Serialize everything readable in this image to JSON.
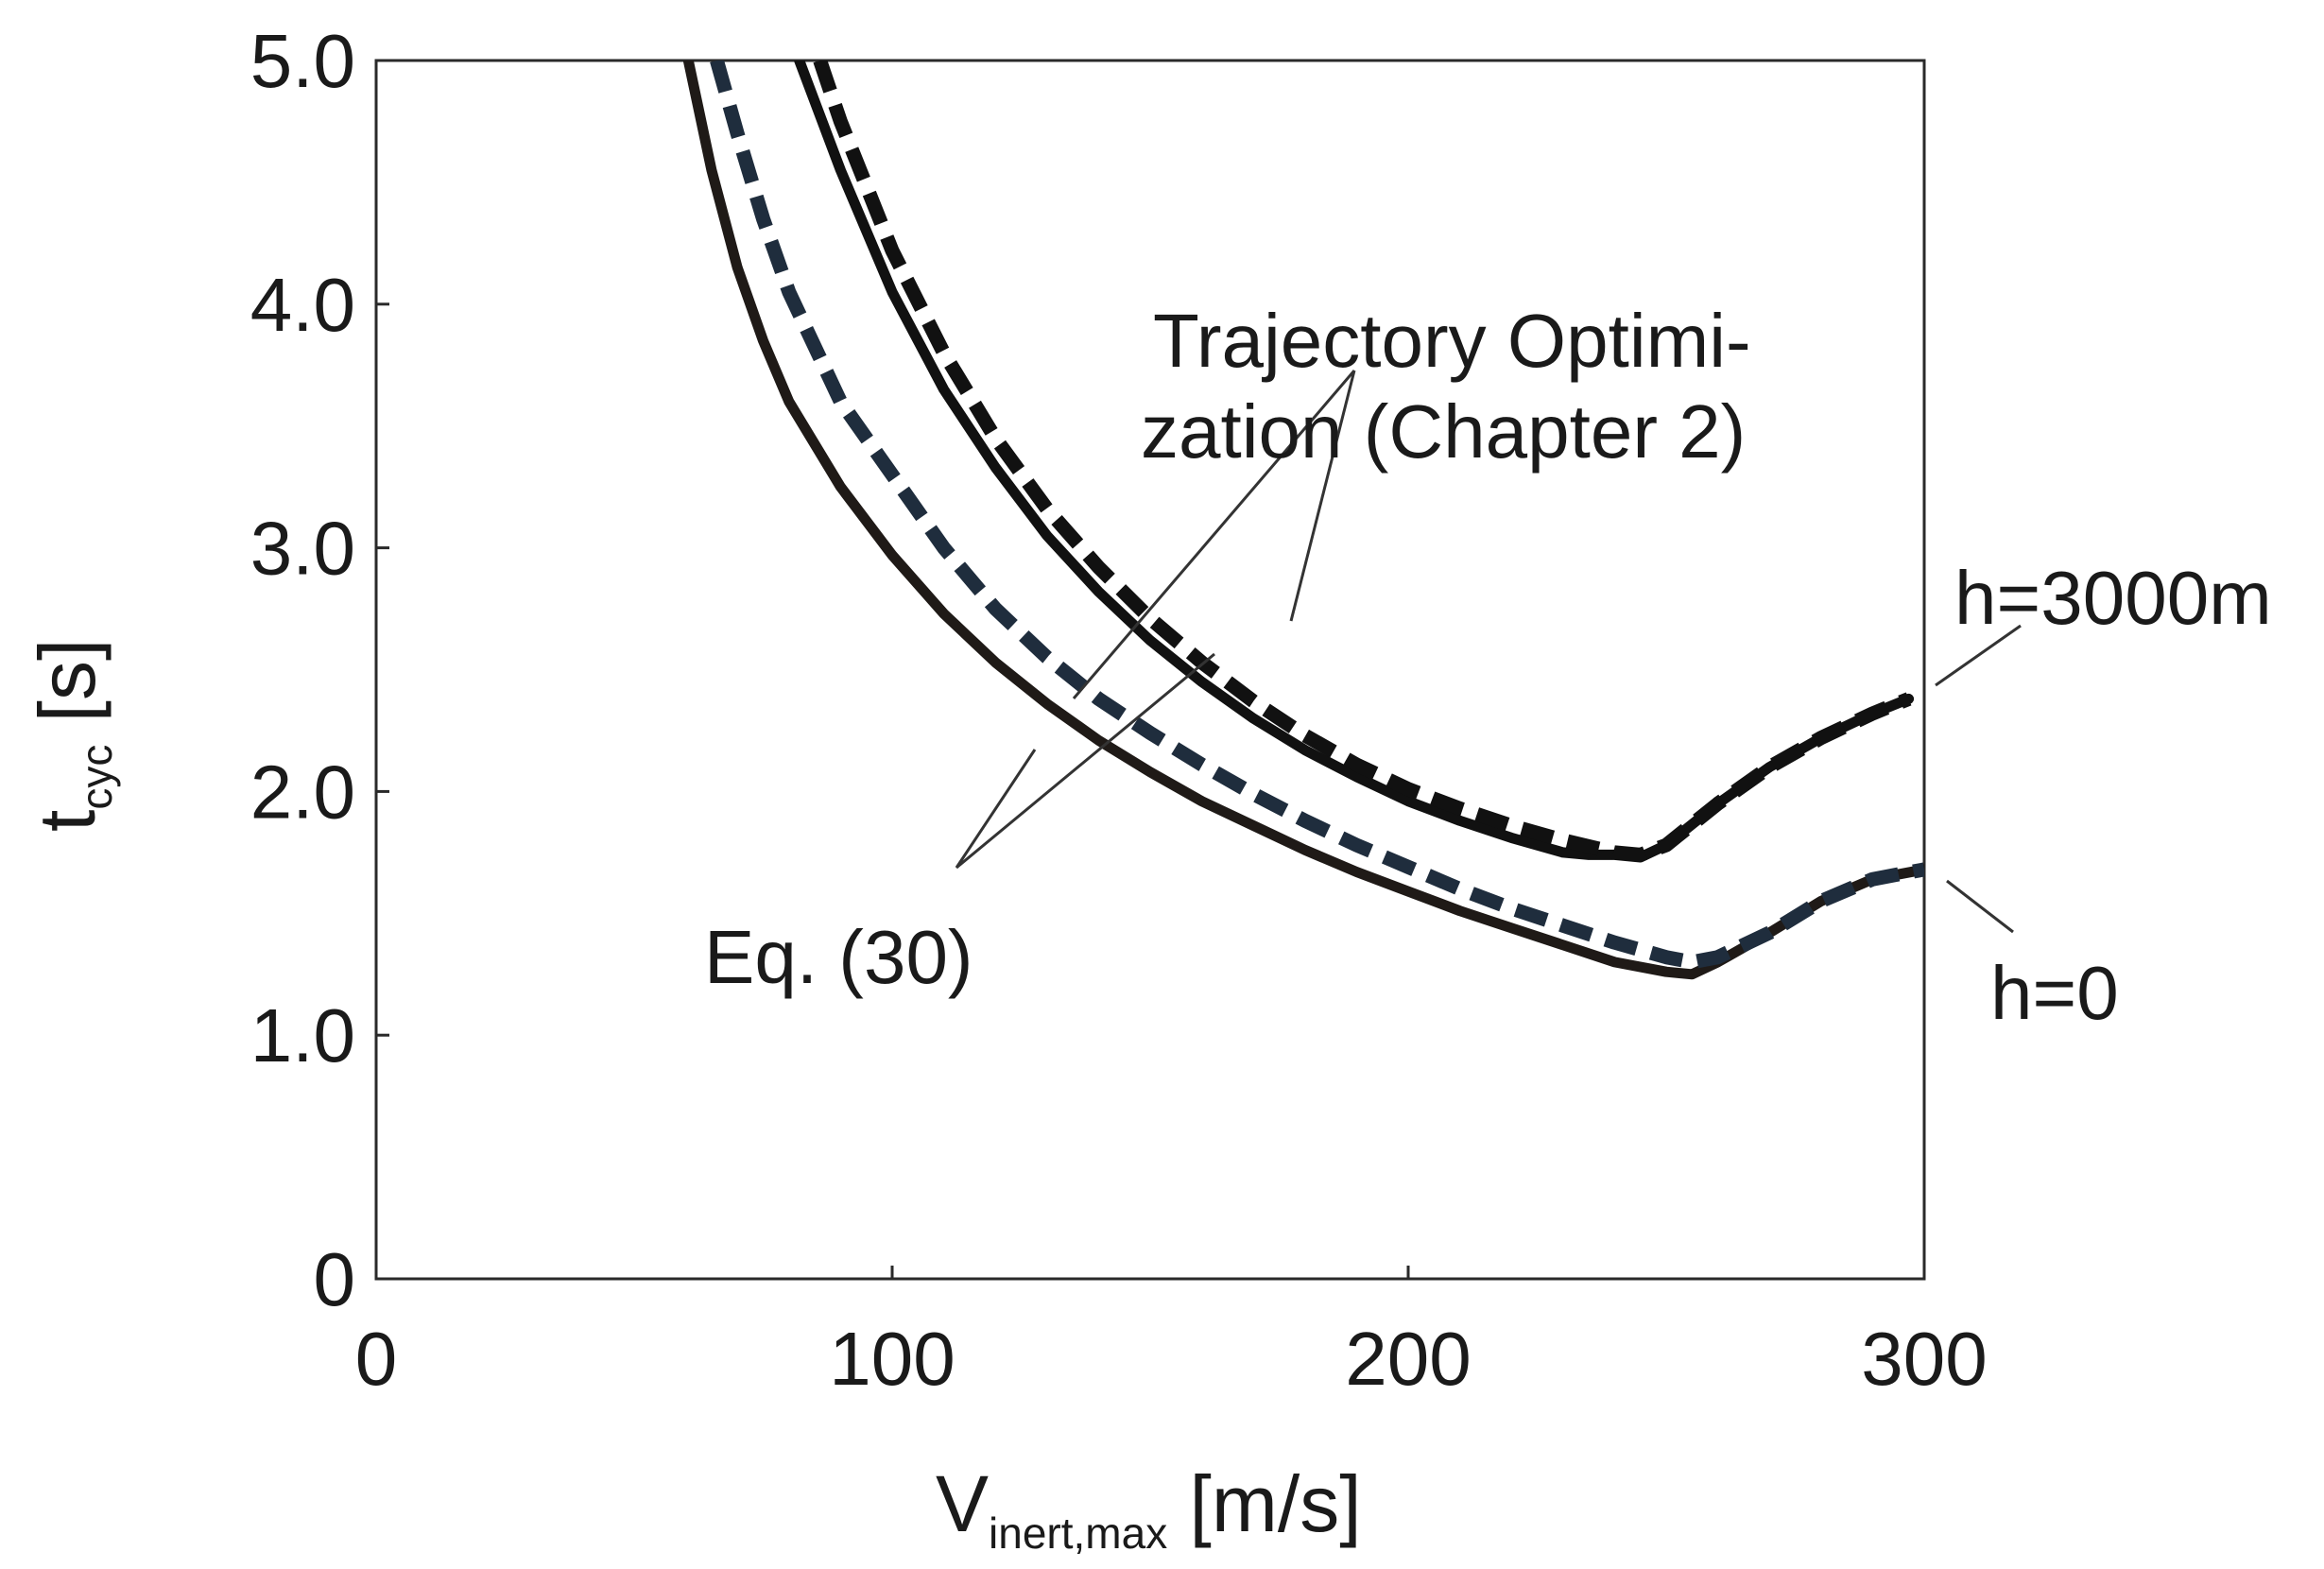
{
  "chart_data": {
    "type": "line",
    "title": "",
    "xlabel": {
      "main": "V",
      "sub": "inert,max",
      "unit": " [m/s]"
    },
    "ylabel": {
      "main": "t",
      "sub": "cyc",
      "unit": " [s]"
    },
    "xlim": [
      0,
      300
    ],
    "ylim": [
      0,
      5
    ],
    "grid": false,
    "x_ticks": [
      {
        "value": 0,
        "label": "0"
      },
      {
        "value": 100,
        "label": "100"
      },
      {
        "value": 200,
        "label": "200"
      },
      {
        "value": 300,
        "label": "300"
      }
    ],
    "y_ticks": [
      {
        "value": 0,
        "label": "0"
      },
      {
        "value": 1,
        "label": "1.0"
      },
      {
        "value": 2,
        "label": "2.0"
      },
      {
        "value": 3,
        "label": "3.0"
      },
      {
        "value": 4,
        "label": "4.0"
      },
      {
        "value": 5,
        "label": "5.0"
      }
    ],
    "series": [
      {
        "name": "Eq. (30), h=0",
        "style": "solid",
        "color": "#1f1a17",
        "x": [
          60.5,
          65,
          70,
          75,
          80,
          90,
          100,
          110,
          120,
          130,
          140,
          150,
          160,
          170,
          180,
          190,
          200,
          210,
          220,
          230,
          240,
          250,
          255,
          260,
          270,
          280,
          290,
          300
        ],
        "y": [
          5.0,
          4.55,
          4.15,
          3.85,
          3.6,
          3.25,
          2.97,
          2.73,
          2.53,
          2.36,
          2.21,
          2.08,
          1.96,
          1.86,
          1.76,
          1.67,
          1.59,
          1.51,
          1.44,
          1.37,
          1.3,
          1.26,
          1.25,
          1.3,
          1.42,
          1.55,
          1.64,
          1.68
        ]
      },
      {
        "name": "Trajectory Optimization (Chapter 2), h=0",
        "style": "dashed",
        "color": "#1f2d3d",
        "x": [
          66,
          70,
          75,
          80,
          90,
          100,
          110,
          120,
          130,
          140,
          150,
          160,
          170,
          180,
          190,
          200,
          210,
          220,
          230,
          240,
          250,
          255,
          260,
          270,
          280,
          290,
          300
        ],
        "y": [
          5.0,
          4.7,
          4.35,
          4.05,
          3.6,
          3.3,
          3.0,
          2.75,
          2.55,
          2.38,
          2.24,
          2.11,
          1.99,
          1.88,
          1.78,
          1.69,
          1.6,
          1.52,
          1.45,
          1.38,
          1.32,
          1.3,
          1.32,
          1.42,
          1.55,
          1.64,
          1.68
        ]
      },
      {
        "name": "Eq. (30), h=3000m",
        "style": "solid",
        "color": "#111111",
        "x": [
          82,
          90,
          100,
          110,
          120,
          130,
          140,
          150,
          160,
          170,
          180,
          190,
          200,
          210,
          220,
          230,
          235,
          240,
          245,
          250,
          260,
          270,
          280,
          290,
          297
        ],
        "y": [
          5.0,
          4.55,
          4.05,
          3.65,
          3.33,
          3.05,
          2.82,
          2.62,
          2.45,
          2.3,
          2.17,
          2.06,
          1.96,
          1.88,
          1.81,
          1.75,
          1.74,
          1.74,
          1.73,
          1.78,
          1.95,
          2.1,
          2.22,
          2.32,
          2.38
        ]
      },
      {
        "name": "Trajectory Optimization (Chapter 2), h=3000m",
        "style": "dashed",
        "color": "#111111",
        "x": [
          86,
          90,
          100,
          110,
          120,
          130,
          140,
          150,
          160,
          170,
          180,
          190,
          200,
          210,
          220,
          230,
          240,
          245,
          250,
          260,
          270,
          280,
          290,
          297
        ],
        "y": [
          5.0,
          4.75,
          4.22,
          3.8,
          3.45,
          3.16,
          2.92,
          2.71,
          2.53,
          2.37,
          2.23,
          2.11,
          2.01,
          1.93,
          1.86,
          1.8,
          1.75,
          1.74,
          1.78,
          1.95,
          2.1,
          2.22,
          2.32,
          2.38
        ]
      }
    ],
    "annotations": {
      "traj_line1": "Trajectory Optimi-",
      "traj_line2": "zation (Chapter 2)",
      "eq30": "Eq. (30)",
      "h3000": "h=3000m",
      "h0": "h=0"
    }
  }
}
